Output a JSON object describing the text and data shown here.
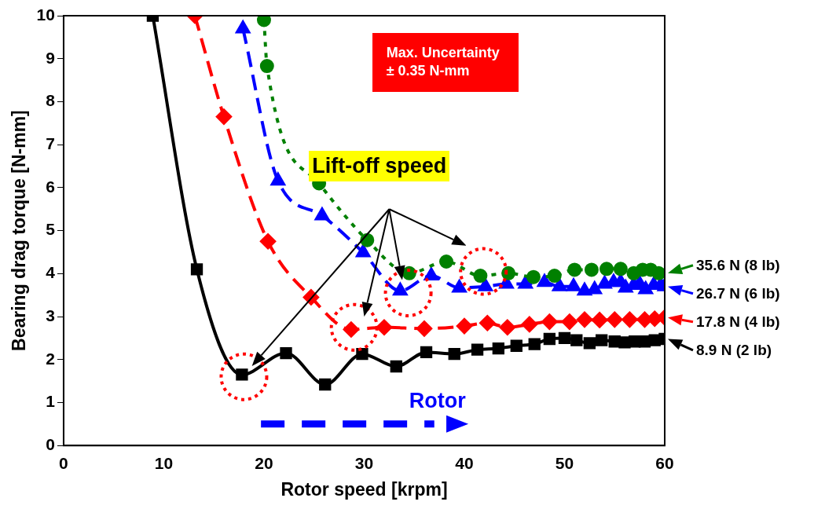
{
  "chart_data": {
    "type": "line",
    "xlabel": "Rotor speed [krpm]",
    "ylabel": "Bearing drag torque [N-mm]",
    "xlim": [
      0,
      60
    ],
    "xticks": [
      0,
      10,
      20,
      30,
      40,
      50,
      60
    ],
    "ylim": [
      0,
      10
    ],
    "yticks": [
      0,
      1,
      2,
      3,
      4,
      5,
      6,
      7,
      8,
      9,
      10
    ],
    "grid": false,
    "legend": "right",
    "annotations": [
      "Lift-off speed",
      "Max. Uncertainty ± 0.35 N-mm",
      "Rotor"
    ],
    "series": [
      {
        "name": "35.6 N (8 lb)",
        "color": "#008000",
        "marker": "circle",
        "line_style": "dotted",
        "x": [
          20,
          20.3,
          25.5,
          30.3,
          34.5,
          38.2,
          41.6,
          44.4,
          46.9,
          49,
          51,
          52.7,
          54.2,
          55.6,
          56.9,
          57.8,
          58.6,
          59.4
        ],
        "values": [
          9.9,
          8.83,
          6.1,
          4.78,
          4.01,
          4.28,
          3.95,
          4.01,
          3.92,
          3.95,
          4.09,
          4.09,
          4.11,
          4.11,
          4.01,
          4.09,
          4.09,
          4.01
        ]
      },
      {
        "name": "26.7 N (6 lb)",
        "color": "#0000ff",
        "marker": "triangle",
        "line_style": "dashed",
        "x": [
          17.9,
          21.4,
          25.8,
          29.9,
          33.6,
          36.7,
          39.5,
          42.1,
          44.2,
          46.1,
          48,
          49.5,
          50.9,
          52,
          53,
          54,
          54.9,
          55.6,
          56.1,
          56.9,
          57.5,
          58.1,
          58.9,
          59.6,
          60
        ],
        "values": [
          9.7,
          6.16,
          5.35,
          4.49,
          3.6,
          3.95,
          3.67,
          3.7,
          3.76,
          3.76,
          3.8,
          3.7,
          3.7,
          3.6,
          3.63,
          3.76,
          3.8,
          3.8,
          3.67,
          3.73,
          3.76,
          3.63,
          3.73,
          3.73,
          3.7
        ]
      },
      {
        "name": "17.8 N (4 lb)",
        "color": "#ff0000",
        "marker": "diamond",
        "line_style": "dashed",
        "x": [
          13.1,
          16,
          20.4,
          24.7,
          28.7,
          32,
          36,
          40,
          42.3,
          44.3,
          46.5,
          48.5,
          50.5,
          52,
          53.5,
          55,
          56.5,
          58,
          59,
          60
        ],
        "values": [
          10,
          7.65,
          4.75,
          3.45,
          2.7,
          2.75,
          2.72,
          2.78,
          2.85,
          2.75,
          2.82,
          2.88,
          2.88,
          2.93,
          2.92,
          2.93,
          2.93,
          2.93,
          2.95,
          2.98
        ]
      },
      {
        "name": "8.9 N (2 lb)",
        "color": "#000000",
        "marker": "square",
        "line_style": "solid",
        "x": [
          8.9,
          13.3,
          17.8,
          22.2,
          26.1,
          29.8,
          33.2,
          36.2,
          39,
          41.3,
          43.4,
          45.2,
          47,
          48.5,
          50,
          51.2,
          52.5,
          53.7,
          55,
          56,
          57,
          58,
          59,
          60
        ],
        "values": [
          10,
          4.1,
          1.65,
          2.15,
          1.42,
          2.13,
          1.84,
          2.17,
          2.13,
          2.23,
          2.26,
          2.32,
          2.36,
          2.48,
          2.5,
          2.45,
          2.38,
          2.45,
          2.42,
          2.4,
          2.42,
          2.42,
          2.45,
          2.48
        ]
      }
    ]
  }
}
